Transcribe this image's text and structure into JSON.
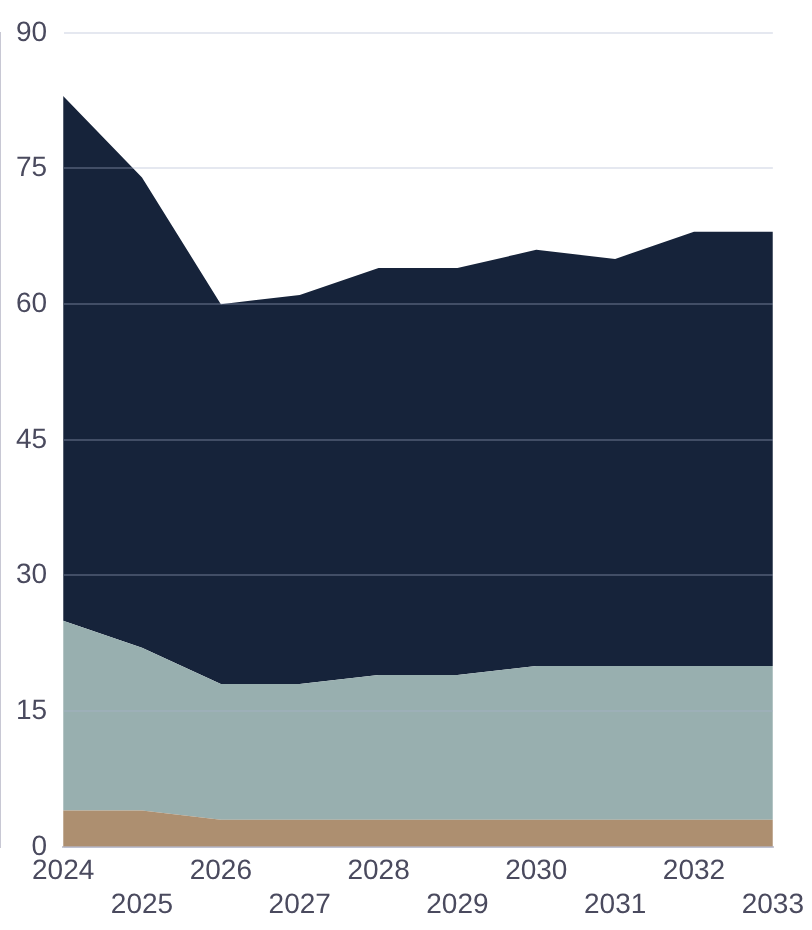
{
  "chart_data": {
    "type": "area",
    "stacked": true,
    "categories": [
      "2024",
      "2025",
      "2026",
      "2027",
      "2028",
      "2029",
      "2030",
      "2031",
      "2032",
      "2033"
    ],
    "series": [
      {
        "color": "#ad8f70",
        "values": [
          4,
          4,
          3,
          3,
          3,
          3,
          3,
          3,
          3,
          3
        ]
      },
      {
        "color": "#98afaf",
        "values": [
          21,
          18,
          15,
          15,
          16,
          16,
          17,
          17,
          17,
          17
        ]
      },
      {
        "color": "#16233a",
        "values": [
          58,
          52,
          42,
          43,
          45,
          45,
          46,
          45,
          48,
          48
        ]
      }
    ],
    "ylim": [
      0,
      90
    ],
    "yticks": [
      0,
      15,
      30,
      45,
      60,
      75,
      90
    ],
    "grid": "y",
    "legend": false
  }
}
